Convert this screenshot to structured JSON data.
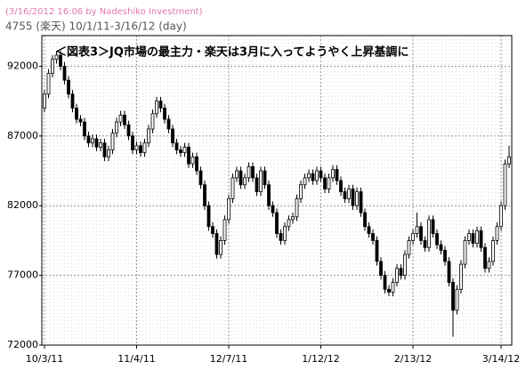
{
  "header": {
    "stamp": "(3/16/2012 16:06 by Nadeshiko Investment)",
    "subtitle": "4755 (楽天) 10/1/11-3/16/12 (day)"
  },
  "chart_data": {
    "type": "candlestick",
    "title": "＜図表3＞JQ市場の最主力・楽天は3月に入ってようやく上昇基調に",
    "up_color": "#ffffff",
    "down_color": "#000000",
    "grid": true,
    "ylim": [
      72000,
      94200
    ],
    "yticks": [
      72000,
      77000,
      82000,
      87000,
      92000
    ],
    "categories": [
      "10/3/11",
      null,
      null,
      null,
      null,
      null,
      null,
      null,
      null,
      null,
      null,
      null,
      null,
      null,
      null,
      null,
      null,
      null,
      null,
      null,
      null,
      null,
      null,
      "11/4/11",
      null,
      null,
      null,
      null,
      null,
      null,
      null,
      null,
      null,
      null,
      null,
      null,
      null,
      null,
      null,
      null,
      null,
      null,
      null,
      null,
      null,
      null,
      "12/7/11",
      null,
      null,
      null,
      null,
      null,
      null,
      null,
      null,
      null,
      null,
      null,
      null,
      null,
      null,
      null,
      null,
      null,
      null,
      null,
      null,
      null,
      null,
      "1/12/12",
      null,
      null,
      null,
      null,
      null,
      null,
      null,
      null,
      null,
      null,
      null,
      null,
      null,
      null,
      null,
      null,
      null,
      null,
      null,
      null,
      null,
      null,
      "2/13/12",
      null,
      null,
      null,
      null,
      null,
      null,
      null,
      null,
      null,
      null,
      null,
      null,
      null,
      null,
      null,
      null,
      null,
      null,
      null,
      null,
      null,
      "3/14/12",
      null,
      null
    ],
    "open": [
      89000,
      90000,
      91500,
      92500,
      92800,
      92000,
      91000,
      90000,
      89000,
      88200,
      88000,
      87000,
      86500,
      86800,
      86200,
      86500,
      85500,
      86000,
      87200,
      88000,
      88500,
      87800,
      87000,
      86000,
      86300,
      85800,
      86500,
      87500,
      88600,
      89500,
      89000,
      88200,
      87500,
      86500,
      86000,
      85800,
      86200,
      85000,
      85500,
      84500,
      83500,
      82000,
      80500,
      80000,
      78500,
      79500,
      81000,
      82500,
      84000,
      84500,
      83500,
      84000,
      84800,
      84000,
      83000,
      84500,
      83500,
      82000,
      81500,
      80000,
      79500,
      80500,
      81000,
      81200,
      82500,
      83500,
      84000,
      84300,
      83800,
      84500,
      84000,
      83200,
      84000,
      84600,
      83800,
      83000,
      82500,
      83200,
      82000,
      83000,
      81500,
      80500,
      80000,
      79500,
      78000,
      77000,
      76000,
      75800,
      76500,
      77500,
      77000,
      78500,
      79500,
      80000,
      80500,
      79500,
      79000,
      81000,
      80000,
      79200,
      78800,
      78000,
      76500,
      74500,
      76000,
      77800,
      79500,
      80000,
      79300,
      80200,
      79000,
      77500,
      78000,
      79500,
      80500,
      82000,
      85000
    ],
    "high": [
      90300,
      91800,
      92800,
      93100,
      93100,
      92300,
      91300,
      90300,
      89300,
      88500,
      88300,
      87300,
      87100,
      87100,
      86800,
      86800,
      86300,
      87500,
      88300,
      88800,
      88800,
      88100,
      87300,
      86600,
      86600,
      86800,
      87800,
      88900,
      89800,
      89800,
      89300,
      88500,
      87800,
      86800,
      86300,
      86500,
      86500,
      85800,
      85800,
      84800,
      83800,
      82300,
      80800,
      80300,
      79800,
      81300,
      82800,
      84300,
      84800,
      84800,
      84300,
      85100,
      85100,
      84300,
      84800,
      84800,
      83800,
      82300,
      81800,
      80300,
      80800,
      81300,
      81500,
      82800,
      83800,
      84300,
      84600,
      84600,
      84800,
      84800,
      84300,
      84300,
      84900,
      84900,
      84100,
      83300,
      83500,
      83500,
      83300,
      83300,
      81800,
      80800,
      80300,
      79800,
      78300,
      77300,
      76300,
      76800,
      77800,
      77800,
      78800,
      79800,
      80300,
      81500,
      80800,
      79800,
      81300,
      81300,
      80300,
      79500,
      79100,
      78300,
      76800,
      76300,
      78100,
      79800,
      80300,
      80300,
      80500,
      80500,
      79300,
      78300,
      79800,
      80800,
      82300,
      85300,
      86300
    ],
    "low": [
      88700,
      89700,
      91200,
      92200,
      91700,
      90700,
      89700,
      88700,
      87900,
      87700,
      86700,
      86200,
      86200,
      85900,
      85900,
      85200,
      85200,
      85700,
      86900,
      87700,
      87500,
      86700,
      85700,
      85700,
      85500,
      85500,
      86200,
      87200,
      88300,
      88700,
      87900,
      87200,
      86200,
      85700,
      85500,
      85500,
      84700,
      84700,
      84200,
      83200,
      81700,
      80200,
      79700,
      78200,
      78200,
      79200,
      80700,
      82200,
      83700,
      83200,
      83200,
      83700,
      83700,
      82700,
      82700,
      83200,
      81700,
      81200,
      79700,
      79200,
      79200,
      80200,
      80700,
      80900,
      82200,
      83200,
      83700,
      83500,
      83500,
      83700,
      82900,
      82900,
      83700,
      83500,
      82700,
      82200,
      82200,
      81700,
      81700,
      81200,
      80200,
      79700,
      79200,
      77700,
      76700,
      75700,
      75500,
      75500,
      76200,
      76700,
      76700,
      78200,
      79200,
      79700,
      79200,
      78700,
      78700,
      79700,
      78900,
      78500,
      77700,
      76200,
      72600,
      74200,
      75700,
      77500,
      79200,
      79000,
      79000,
      78700,
      77200,
      77200,
      77700,
      79200,
      80200,
      81700,
      84700
    ],
    "close": [
      90000,
      91500,
      92500,
      92800,
      92000,
      91000,
      90000,
      89000,
      88200,
      88000,
      87000,
      86500,
      86800,
      86200,
      86500,
      85500,
      86000,
      87200,
      88000,
      88500,
      87800,
      87000,
      86000,
      86300,
      85800,
      86500,
      87500,
      88600,
      89500,
      89000,
      88200,
      87500,
      86500,
      86000,
      85800,
      86200,
      85000,
      85500,
      84500,
      83500,
      82000,
      80500,
      80000,
      78500,
      79500,
      81000,
      82500,
      84000,
      84500,
      83500,
      84000,
      84800,
      84000,
      83000,
      84500,
      83500,
      82000,
      81500,
      80000,
      79500,
      80500,
      81000,
      81200,
      82500,
      83500,
      84000,
      84300,
      83800,
      84500,
      84000,
      83200,
      84000,
      84600,
      83800,
      83000,
      82500,
      83200,
      82000,
      83000,
      81500,
      80500,
      80000,
      79500,
      78000,
      77000,
      76000,
      75800,
      76500,
      77500,
      77000,
      78500,
      79500,
      80000,
      80500,
      79500,
      79000,
      81000,
      80000,
      79200,
      78800,
      78000,
      76500,
      74500,
      76000,
      77800,
      79500,
      80000,
      79300,
      80200,
      79000,
      77500,
      78000,
      79500,
      80500,
      82000,
      85000,
      85500
    ]
  }
}
